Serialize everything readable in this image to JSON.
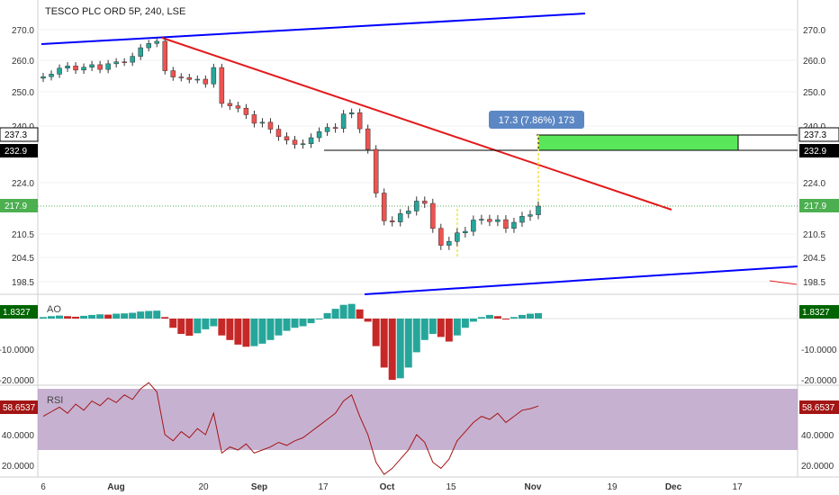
{
  "header": {
    "title": "TESCO PLC ORD 5P, 240, LSE"
  },
  "chart_data": [
    {
      "panel": "price",
      "type": "candlestick",
      "title": "TESCO PLC ORD 5P, 240, LSE",
      "x_ticks": [
        "6",
        "Aug",
        "20",
        "Sep",
        "17",
        "Oct",
        "15",
        "Nov",
        "19",
        "Dec",
        "17"
      ],
      "y_ticks": [
        "270.0",
        "260.0",
        "250.0",
        "240.0",
        "224.0",
        "210.5",
        "204.5",
        "198.5"
      ],
      "ylim": [
        195,
        274
      ],
      "last_price": "217.9",
      "level_labels": [
        "237.3",
        "232.9"
      ],
      "measure_label": "17.3 (7.86%) 173",
      "close_path_x": [
        0,
        1,
        2,
        3,
        4,
        5,
        6,
        7,
        8,
        9,
        10,
        11,
        12,
        13,
        14,
        15,
        16,
        17,
        18,
        19,
        20,
        21,
        22,
        23,
        24,
        25,
        26,
        27,
        28,
        29,
        30,
        31,
        32,
        33,
        34,
        35,
        36,
        37,
        38,
        39,
        40,
        41,
        42,
        43,
        44,
        45,
        46,
        47,
        48,
        49,
        50,
        51,
        52,
        53,
        54,
        55,
        56,
        57,
        58,
        59,
        60,
        61
      ],
      "close_path_y": [
        254.8,
        255.6,
        257.5,
        258.2,
        256.9,
        257.8,
        258.6,
        257.1,
        258.9,
        259.5,
        259.4,
        261.3,
        264.1,
        265.5,
        266.2,
        256.7,
        254.7,
        254.5,
        253.9,
        254.0,
        252.5,
        257.7,
        246.6,
        245.9,
        245.2,
        243.3,
        240.8,
        241.1,
        239.1,
        237.0,
        236.0,
        234.8,
        235.0,
        236.7,
        238.4,
        239.6,
        239.3,
        243.5,
        243.9,
        239.2,
        233.4,
        221.3,
        214.0,
        213.7,
        215.9,
        216.6,
        219.2,
        218.6,
        212.0,
        207.6,
        208.6,
        210.8,
        211.2,
        214.2,
        214.4,
        213.8,
        214.3,
        212.0,
        213.6,
        215.2,
        215.6,
        217.9
      ]
    },
    {
      "panel": "AO",
      "type": "bar",
      "title": "AO",
      "y_ticks": [
        "-10.0000",
        "-20.0000"
      ],
      "ylim": [
        -22,
        5
      ],
      "last_value": "1.8327",
      "values": [
        0.5,
        0.8,
        1.0,
        0.8,
        0.6,
        0.9,
        1.2,
        1.4,
        1.3,
        1.6,
        1.7,
        1.9,
        2.3,
        2.5,
        2.6,
        0.5,
        -3.0,
        -5.0,
        -5.6,
        -4.8,
        -3.5,
        -2.5,
        -5.5,
        -7.0,
        -8.5,
        -9.2,
        -9.0,
        -8.2,
        -7.0,
        -5.5,
        -4.0,
        -3.0,
        -2.5,
        -1.5,
        0.0,
        1.8,
        3.2,
        4.5,
        4.8,
        3.0,
        -1.0,
        -9.0,
        -16.0,
        -20.0,
        -19.5,
        -16.0,
        -11.0,
        -7.0,
        -5.0,
        -6.0,
        -7.5,
        -5.5,
        -3.0,
        -1.0,
        0.5,
        1.2,
        0.8,
        -0.3,
        0.5,
        1.2,
        1.6,
        1.8
      ]
    },
    {
      "panel": "RSI",
      "type": "line",
      "title": "RSI",
      "y_ticks": [
        "40.0000",
        "20.0000"
      ],
      "ylim": [
        15,
        85
      ],
      "band": [
        30,
        70
      ],
      "last_value": "58.6537",
      "values": [
        52,
        55,
        58,
        54,
        60,
        56,
        62,
        59,
        64,
        61,
        66,
        63,
        70,
        74,
        68,
        40,
        36,
        42,
        38,
        44,
        40,
        54,
        28,
        32,
        30,
        34,
        28,
        30,
        32,
        35,
        33,
        36,
        38,
        42,
        46,
        50,
        54,
        62,
        66,
        52,
        40,
        22,
        14,
        18,
        24,
        30,
        40,
        35,
        22,
        18,
        24,
        36,
        42,
        48,
        52,
        50,
        54,
        48,
        52,
        56,
        57,
        58.7
      ]
    },
    {
      "panel": "x-axis",
      "type": "axis",
      "x_ticks": [
        "6",
        "Aug",
        "20",
        "Sep",
        "17",
        "Oct",
        "15",
        "Nov",
        "19",
        "Dec",
        "17"
      ]
    }
  ],
  "colors": {
    "up": "#26a69a",
    "down": "#ef5350",
    "trend_up_channel": "#0000ff",
    "trend_down": "#e31a1c",
    "target_box": "#5ae65a",
    "last_price_badge": "#4caf50",
    "ao_badge": "#006400",
    "rsi_badge": "#a31515",
    "rsi_band": "#b497c2",
    "measure_badge": "#5b87c4"
  }
}
